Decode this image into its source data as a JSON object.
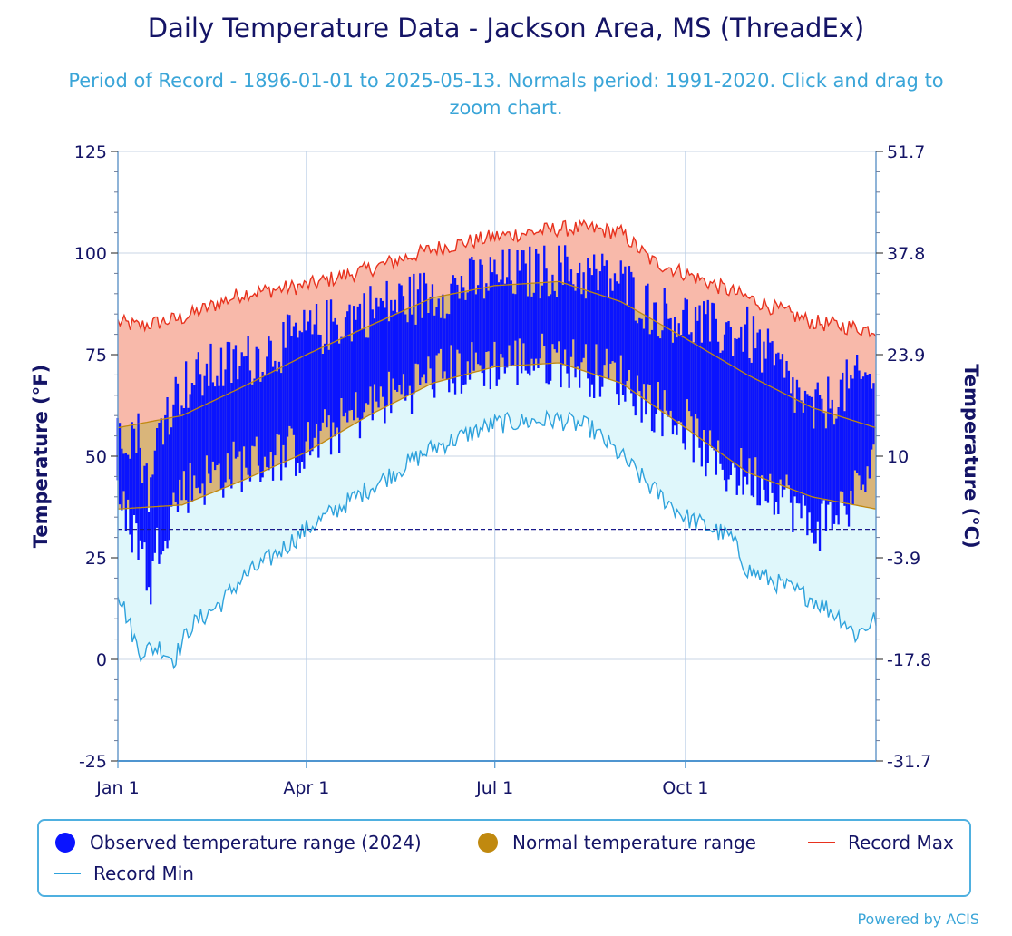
{
  "header": {
    "title": "Daily Temperature Data - Jackson Area, MS (ThreadEx)",
    "subtitle": "Period of Record - 1896-01-01 to 2025-05-13. Normals period: 1991-2020. Click and drag to zoom chart."
  },
  "credit": "Powered by ACIS",
  "colors": {
    "observed": "#0a14ff",
    "normal": "#c0890f",
    "normal_fill": "#d9b57a",
    "record_max": "#e8321e",
    "record_max_fill": "#f8b9aa",
    "record_min": "#2ea2dc",
    "record_min_fill": "#dff7fb"
  },
  "chart_data": {
    "type": "area",
    "title": "Daily Temperature Data - Jackson Area, MS (ThreadEx)",
    "subtitle": "Period of Record - 1896-01-01 to 2025-05-13. Normals period: 1991-2020. Click and drag to zoom chart.",
    "ylabel": "Temperature (°F)",
    "y2label": "Temperature (°C)",
    "ylim": [
      -25,
      125
    ],
    "yticks": [
      "125",
      "100",
      "75",
      "50",
      "25",
      "0",
      "-25"
    ],
    "y2ticks": [
      "51.7",
      "37.8",
      "23.9",
      "10",
      "-3.9",
      "-17.8",
      "-31.7"
    ],
    "y2tick_values_f": [
      125,
      100,
      75,
      50,
      25,
      0,
      -25
    ],
    "xlim": [
      0,
      366
    ],
    "xticks": [
      {
        "label": "Jan 1",
        "day": 0
      },
      {
        "label": "Apr 1",
        "day": 91
      },
      {
        "label": "Jul 1",
        "day": 182
      },
      {
        "label": "Oct 1",
        "day": 274
      }
    ],
    "freezing_line_f": 32,
    "legend": {
      "observed": "Observed temperature range (2024)",
      "normal": "Normal temperature range",
      "record_max": "Record Max",
      "record_min": "Record Min"
    },
    "record_max_anchors": [
      [
        0,
        83
      ],
      [
        10,
        82
      ],
      [
        31,
        84
      ],
      [
        60,
        90
      ],
      [
        91,
        92
      ],
      [
        121,
        96
      ],
      [
        152,
        101
      ],
      [
        182,
        104
      ],
      [
        213,
        106
      ],
      [
        228,
        106
      ],
      [
        243,
        105
      ],
      [
        258,
        98
      ],
      [
        274,
        95
      ],
      [
        304,
        89
      ],
      [
        335,
        83
      ],
      [
        366,
        81
      ]
    ],
    "record_min_anchors": [
      [
        0,
        17
      ],
      [
        10,
        2
      ],
      [
        20,
        3
      ],
      [
        27,
        0
      ],
      [
        35,
        8
      ],
      [
        50,
        14
      ],
      [
        60,
        20
      ],
      [
        74,
        25
      ],
      [
        91,
        32
      ],
      [
        121,
        42
      ],
      [
        152,
        52
      ],
      [
        182,
        58
      ],
      [
        213,
        59
      ],
      [
        228,
        57
      ],
      [
        243,
        50
      ],
      [
        258,
        42
      ],
      [
        274,
        35
      ],
      [
        296,
        30
      ],
      [
        304,
        22
      ],
      [
        335,
        15
      ],
      [
        350,
        10
      ],
      [
        356,
        6
      ],
      [
        366,
        10
      ]
    ],
    "normal_max_anchors": [
      [
        0,
        57
      ],
      [
        31,
        60
      ],
      [
        60,
        67
      ],
      [
        91,
        75
      ],
      [
        121,
        82
      ],
      [
        152,
        89
      ],
      [
        182,
        92
      ],
      [
        213,
        93
      ],
      [
        243,
        88
      ],
      [
        274,
        79
      ],
      [
        304,
        70
      ],
      [
        335,
        62
      ],
      [
        366,
        57
      ]
    ],
    "normal_min_anchors": [
      [
        0,
        37
      ],
      [
        31,
        38
      ],
      [
        60,
        44
      ],
      [
        91,
        51
      ],
      [
        121,
        60
      ],
      [
        152,
        68
      ],
      [
        182,
        72
      ],
      [
        213,
        73
      ],
      [
        243,
        68
      ],
      [
        274,
        57
      ],
      [
        304,
        46
      ],
      [
        335,
        40
      ],
      [
        366,
        37
      ]
    ],
    "observed_2024_anchors": {
      "high": [
        [
          0,
          58
        ],
        [
          10,
          55
        ],
        [
          16,
          40
        ],
        [
          20,
          58
        ],
        [
          31,
          67
        ],
        [
          45,
          71
        ],
        [
          60,
          73
        ],
        [
          91,
          80
        ],
        [
          121,
          86
        ],
        [
          152,
          90
        ],
        [
          182,
          94
        ],
        [
          213,
          96
        ],
        [
          243,
          93
        ],
        [
          258,
          86
        ],
        [
          274,
          84
        ],
        [
          288,
          81
        ],
        [
          304,
          80
        ],
        [
          320,
          71
        ],
        [
          335,
          60
        ],
        [
          352,
          67
        ],
        [
          366,
          70
        ]
      ],
      "low": [
        [
          0,
          38
        ],
        [
          10,
          30
        ],
        [
          16,
          18
        ],
        [
          20,
          30
        ],
        [
          31,
          42
        ],
        [
          45,
          45
        ],
        [
          60,
          48
        ],
        [
          91,
          52
        ],
        [
          121,
          62
        ],
        [
          152,
          70
        ],
        [
          182,
          73
        ],
        [
          213,
          74
        ],
        [
          243,
          69
        ],
        [
          258,
          63
        ],
        [
          274,
          58
        ],
        [
          288,
          48
        ],
        [
          304,
          45
        ],
        [
          320,
          42
        ],
        [
          335,
          32
        ],
        [
          352,
          38
        ],
        [
          366,
          48
        ]
      ],
      "spread": 7
    }
  }
}
